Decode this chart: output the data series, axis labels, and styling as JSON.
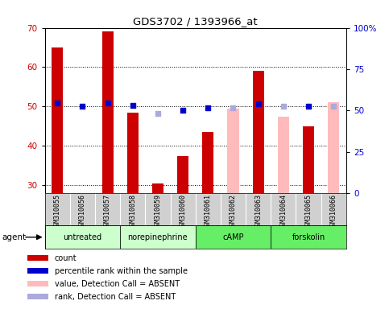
{
  "title": "GDS3702 / 1393966_at",
  "samples": [
    "GSM310055",
    "GSM310056",
    "GSM310057",
    "GSM310058",
    "GSM310059",
    "GSM310060",
    "GSM310061",
    "GSM310062",
    "GSM310063",
    "GSM310064",
    "GSM310065",
    "GSM310066"
  ],
  "bar_values": [
    65,
    0,
    69,
    48.5,
    30.5,
    37.5,
    43.5,
    0,
    59,
    0,
    45,
    0
  ],
  "bar_absent_values": [
    0,
    0,
    0,
    0,
    0,
    0,
    0,
    49.5,
    0,
    47.5,
    0,
    51
  ],
  "dot_values": [
    54.5,
    52.5,
    54.5,
    53,
    0,
    50,
    51.5,
    0,
    54,
    0,
    52.5,
    0
  ],
  "dot_absent_values": [
    0,
    0,
    0,
    0,
    48,
    0,
    0,
    51.5,
    0,
    52.5,
    0,
    52.5
  ],
  "bar_color_present": "#cc0000",
  "bar_color_absent": "#ffbbbb",
  "dot_color_present": "#0000cc",
  "dot_color_absent": "#aaaadd",
  "ylim_left": [
    28,
    70
  ],
  "ylim_right": [
    0,
    100
  ],
  "yticks_left": [
    30,
    40,
    50,
    60,
    70
  ],
  "yticks_right": [
    0,
    25,
    50,
    75,
    100
  ],
  "ytick_labels_right": [
    "0",
    "25",
    "50",
    "75",
    "100%"
  ],
  "groups": [
    {
      "label": "untreated",
      "start": 0,
      "end": 3,
      "color": "#ccffcc"
    },
    {
      "label": "norepinephrine",
      "start": 3,
      "end": 6,
      "color": "#ccffcc"
    },
    {
      "label": "cAMP",
      "start": 6,
      "end": 9,
      "color": "#66ee66"
    },
    {
      "label": "forskolin",
      "start": 9,
      "end": 12,
      "color": "#66ee66"
    }
  ],
  "bar_width": 0.45,
  "dot_size": 25,
  "tick_label_color": "#c8c8c8",
  "legend": [
    {
      "color": "#cc0000",
      "label": "count"
    },
    {
      "color": "#0000cc",
      "label": "percentile rank within the sample"
    },
    {
      "color": "#ffbbbb",
      "label": "value, Detection Call = ABSENT"
    },
    {
      "color": "#aaaadd",
      "label": "rank, Detection Call = ABSENT"
    }
  ]
}
